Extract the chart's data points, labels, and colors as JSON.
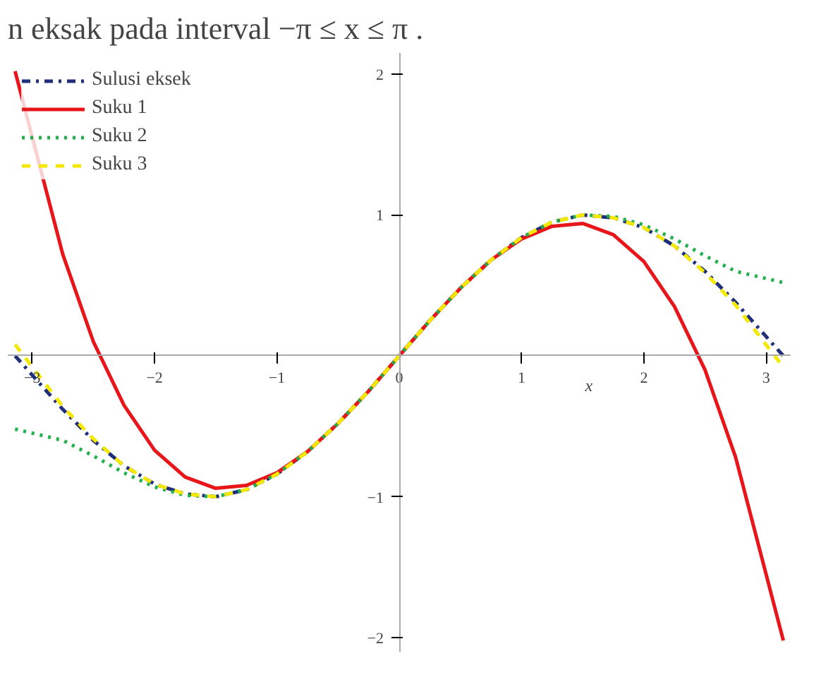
{
  "chart_data": {
    "type": "line",
    "title": "n eksak pada interval −π ≤ x ≤ π .",
    "xlabel": "x",
    "x": [
      -3.14,
      -2.75,
      -2.5,
      -2.25,
      -2,
      -1.75,
      -1.5,
      -1.25,
      -1,
      -0.75,
      -0.5,
      -0.25,
      0,
      0.25,
      0.5,
      0.75,
      1,
      1.25,
      1.5,
      1.75,
      2,
      2.25,
      2.5,
      2.75,
      3.14
    ],
    "series": [
      {
        "name": "Sulusi eksek",
        "color": "#1f2f7a",
        "line_style": "dashdot",
        "values": [
          0,
          -0.38,
          -0.6,
          -0.78,
          -0.91,
          -0.98,
          -1.0,
          -0.95,
          -0.84,
          -0.68,
          -0.48,
          -0.25,
          0,
          0.25,
          0.48,
          0.68,
          0.84,
          0.95,
          1.0,
          0.98,
          0.91,
          0.78,
          0.6,
          0.38,
          0
        ]
      },
      {
        "name": "Suku 1",
        "color": "#e8161b",
        "line_style": "solid",
        "values": [
          2.02,
          0.72,
          0.1,
          -0.35,
          -0.67,
          -0.86,
          -0.94,
          -0.92,
          -0.83,
          -0.68,
          -0.48,
          -0.25,
          0,
          0.25,
          0.48,
          0.68,
          0.83,
          0.92,
          0.94,
          0.86,
          0.67,
          0.35,
          -0.1,
          -0.72,
          -2.02
        ]
      },
      {
        "name": "Suku 2",
        "color": "#22b04b",
        "line_style": "dotted",
        "values": [
          -0.52,
          -0.6,
          -0.71,
          -0.83,
          -0.93,
          -0.99,
          -1.0,
          -0.95,
          -0.84,
          -0.68,
          -0.48,
          -0.25,
          0,
          0.25,
          0.48,
          0.68,
          0.84,
          0.95,
          1.0,
          0.99,
          0.93,
          0.83,
          0.71,
          0.6,
          0.52
        ]
      },
      {
        "name": "Suku 3",
        "color": "#f5e800",
        "line_style": "dashed",
        "values": [
          0.08,
          -0.36,
          -0.59,
          -0.78,
          -0.91,
          -0.98,
          -1.0,
          -0.95,
          -0.84,
          -0.68,
          -0.48,
          -0.25,
          0,
          0.25,
          0.48,
          0.68,
          0.84,
          0.95,
          1.0,
          0.98,
          0.91,
          0.78,
          0.59,
          0.36,
          -0.08
        ]
      }
    ],
    "xlim": [
      -3.2,
      3.2
    ],
    "ylim": [
      -2.1,
      2.15
    ],
    "xticks": [
      {
        "value": -3,
        "label": "−3"
      },
      {
        "value": -2,
        "label": "−2"
      },
      {
        "value": -1,
        "label": "−1"
      },
      0,
      1,
      2,
      3
    ],
    "yticks": [
      {
        "value": -2,
        "label": "−2"
      },
      {
        "value": -1,
        "label": "−1"
      },
      1,
      2
    ],
    "grid": false,
    "legend": "top left",
    "marker": "none"
  }
}
